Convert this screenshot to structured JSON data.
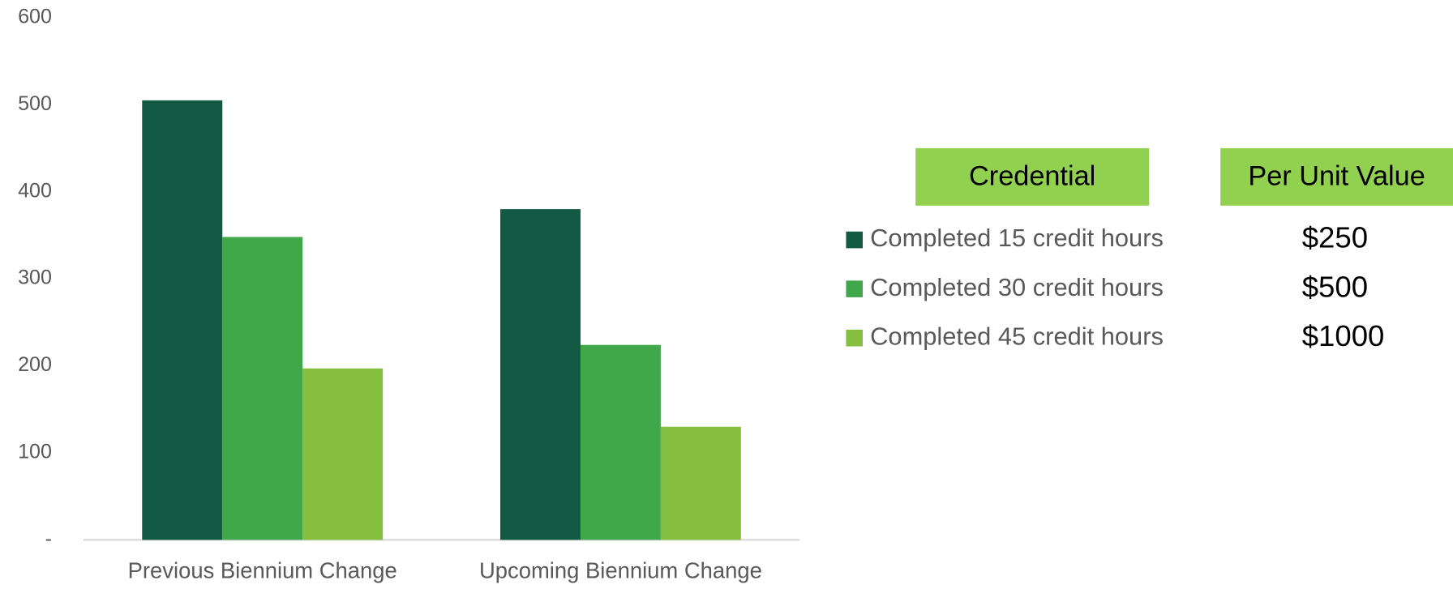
{
  "chart_data": {
    "type": "bar",
    "categories": [
      "Previous Biennium Change",
      "Upcoming Biennium Change"
    ],
    "series": [
      {
        "name": "Completed 15 credit hours",
        "color": "#135a45",
        "values": [
          505,
          380
        ]
      },
      {
        "name": "Completed 30 credit hours",
        "color": "#40a84a",
        "values": [
          348,
          224
        ]
      },
      {
        "name": "Completed 45 credit hours",
        "color": "#86bf40",
        "values": [
          197,
          130
        ]
      }
    ],
    "ylim": [
      0,
      600
    ],
    "yticks": [
      {
        "value": 0,
        "label": "-"
      },
      100,
      200,
      300,
      400,
      500,
      600
    ],
    "grid": false,
    "legend_table": {
      "headers": [
        "Credential",
        "Per Unit Value"
      ],
      "header_color": "#92d050",
      "unit_values": [
        "$250",
        "$500",
        "$1000"
      ]
    }
  }
}
